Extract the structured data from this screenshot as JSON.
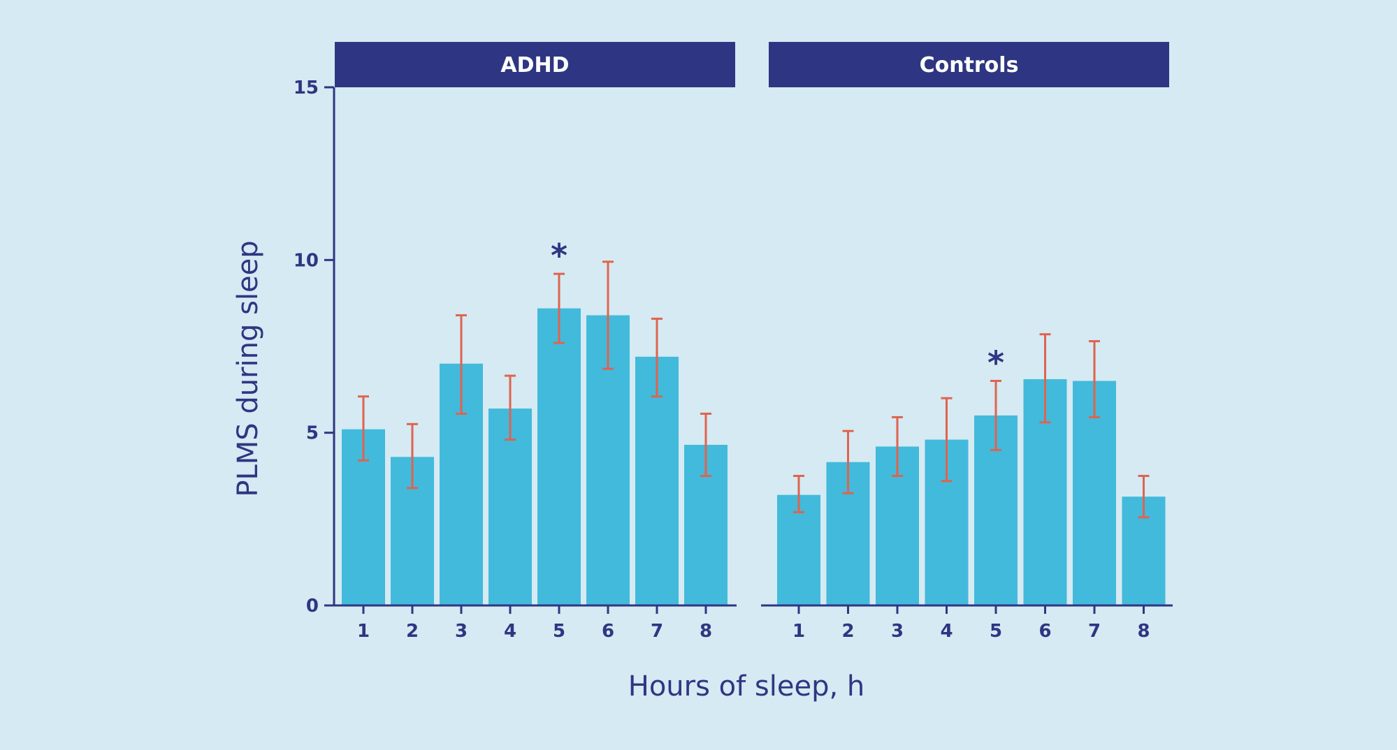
{
  "chart_data": {
    "type": "bar",
    "xlabel": "Hours of sleep, h",
    "ylabel": "PLMS during sleep",
    "ylim": [
      0,
      15
    ],
    "yticks": [
      0,
      5,
      10,
      15
    ],
    "grid": false,
    "colors": {
      "bar": "#42badb",
      "error": "#e0634f",
      "axis": "#2e3683",
      "header": "#2e3683",
      "background": "#d5eaf2"
    },
    "panels": [
      {
        "title": "ADHD",
        "categories": [
          "1",
          "2",
          "3",
          "4",
          "5",
          "6",
          "7",
          "8"
        ],
        "values": [
          5.1,
          4.3,
          7.0,
          5.7,
          8.6,
          8.4,
          7.2,
          4.65
        ],
        "error_low": [
          4.2,
          3.4,
          5.55,
          4.8,
          7.6,
          6.85,
          6.05,
          3.75
        ],
        "error_high": [
          6.05,
          5.25,
          8.4,
          6.65,
          9.6,
          9.95,
          8.3,
          5.55
        ],
        "significance": [
          "",
          "",
          "",
          "",
          "*",
          "",
          "",
          ""
        ]
      },
      {
        "title": "Controls",
        "categories": [
          "1",
          "2",
          "3",
          "4",
          "5",
          "6",
          "7",
          "8"
        ],
        "values": [
          3.2,
          4.15,
          4.6,
          4.8,
          5.5,
          6.55,
          6.5,
          3.15
        ],
        "error_low": [
          2.7,
          3.25,
          3.75,
          3.6,
          4.5,
          5.3,
          5.45,
          2.55
        ],
        "error_high": [
          3.75,
          5.05,
          5.45,
          6.0,
          6.5,
          7.85,
          7.65,
          3.75
        ],
        "significance": [
          "",
          "",
          "",
          "",
          "*",
          "",
          "",
          ""
        ]
      }
    ]
  }
}
